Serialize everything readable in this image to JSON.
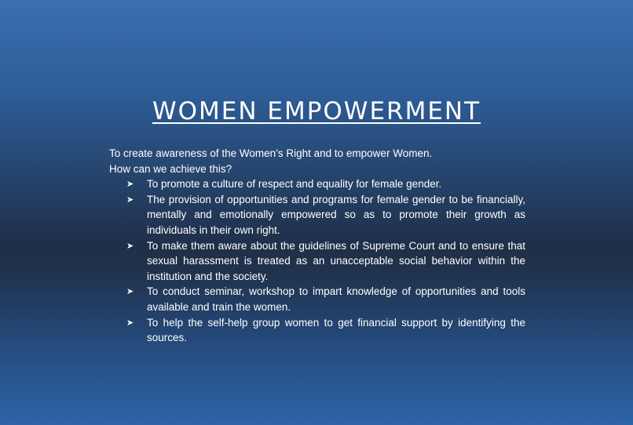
{
  "slide": {
    "title": "WOMEN EMPOWERMENT",
    "intro_line_1": "To create awareness of the Women’s Right and to empower Women.",
    "intro_line_2": "How can we achieve this?",
    "bullet_glyph": "⮱",
    "bullets": [
      "To promote a culture of respect and equality for female gender.",
      "The provision of opportunities and programs for female gender to be financially, mentally and emotionally empowered so as to promote their growth as individuals in their own right.",
      "To make them aware about the guidelines of Supreme Court and to ensure that sexual harassment is treated as an unacceptable social behavior within the institution and the society.",
      "To conduct seminar, workshop to impart knowledge of opportunities and tools available and train the women.",
      "To help the self-help group women to get financial support by identifying the sources."
    ]
  },
  "colors": {
    "text": "#ffffff",
    "background_top": "#3a6fb0",
    "background_middle": "#1f2f48",
    "background_bottom": "#2d63a8"
  }
}
